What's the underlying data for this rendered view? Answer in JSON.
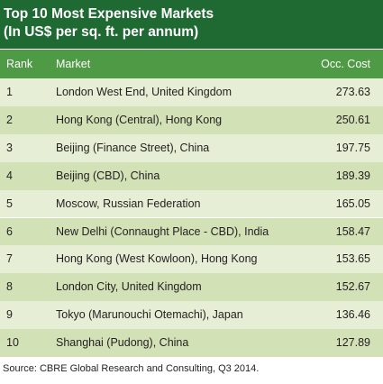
{
  "title": {
    "line1": "Top 10 Most Expensive Markets",
    "line2": "(In US$ per sq. ft. per annum)"
  },
  "columns": {
    "rank": "Rank",
    "market": "Market",
    "cost": "Occ. Cost"
  },
  "rows": [
    {
      "rank": "1",
      "market": "London West End, United Kingdom",
      "cost": "273.63"
    },
    {
      "rank": "2",
      "market": "Hong Kong (Central), Hong Kong",
      "cost": "250.61"
    },
    {
      "rank": "3",
      "market": "Beijing (Finance Street), China",
      "cost": "197.75"
    },
    {
      "rank": "4",
      "market": "Beijing (CBD), China",
      "cost": "189.39"
    },
    {
      "rank": "5",
      "market": "Moscow, Russian Federation",
      "cost": "165.05"
    },
    {
      "rank": "6",
      "market": "New Delhi (Connaught Place - CBD), India",
      "cost": "158.47"
    },
    {
      "rank": "7",
      "market": "Hong Kong (West Kowloon), Hong Kong",
      "cost": "153.65"
    },
    {
      "rank": "8",
      "market": "London City, United Kingdom",
      "cost": "152.67"
    },
    {
      "rank": "9",
      "market": "Tokyo (Marunouchi Otemachi), Japan",
      "cost": "136.46"
    },
    {
      "rank": "10",
      "market": "Shanghai (Pudong), China",
      "cost": "127.89"
    }
  ],
  "source": "Source: CBRE Global Research and Consulting, Q3 2014.",
  "colors": {
    "title_bg": "#1f6a33",
    "header_bg": "#4f9a45",
    "row_light": "#e6eed5",
    "row_dark": "#d3e1b7"
  }
}
